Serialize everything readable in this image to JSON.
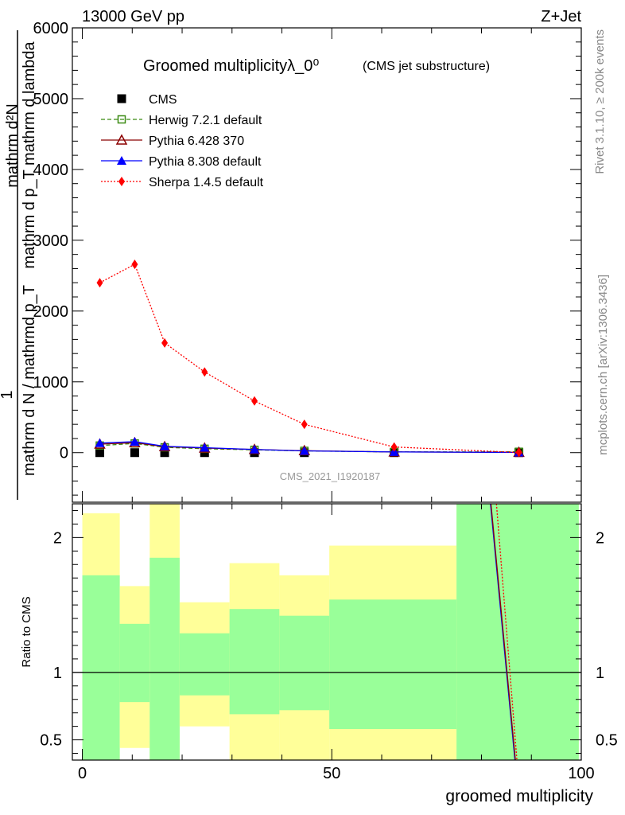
{
  "header": {
    "energy_label": "13000 GeV pp",
    "process_label": "Z+Jet"
  },
  "side_labels": {
    "rivet": "Rivet 3.1.10, ≥ 200k events",
    "mcplots": "mcplots.cern.ch [arXiv:1306.3436]"
  },
  "colors": {
    "cms": "#000000",
    "herwig": "#3a8a12",
    "pythia6": "#8b0000",
    "pythia8": "#0000ff",
    "sherpa": "#ff0000",
    "band_inner": "#99ff99",
    "band_outer": "#ffff99"
  },
  "chart_data": [
    {
      "type": "line",
      "title": "Groomed multiplicityλ_0⁰",
      "subtitle": "(CMS jet substructure)",
      "watermark": "CMS_2021_I1920187",
      "ylabel_top": "mathrm d²N",
      "ylabel_mid": "mathrm d p_T mathrm d lambda",
      "ylabel_one": "1",
      "ylabel_bottom": "mathrm d N / mathrmd p_T",
      "xlim": [
        -2,
        100
      ],
      "ylim": [
        -700,
        6000
      ],
      "yticks": [
        0,
        1000,
        2000,
        3000,
        4000,
        5000,
        6000
      ],
      "ytick_labels": [
        "0",
        "1000",
        "2000",
        "3000",
        "4000",
        "5000",
        "6000"
      ],
      "x": [
        3.5,
        10.5,
        16.5,
        24.5,
        34.5,
        44.5,
        62.5,
        87.5
      ],
      "series": [
        {
          "key": "cms",
          "name": "CMS",
          "marker": "square-filled",
          "line": "none",
          "values": [
            0,
            0,
            0,
            0,
            0,
            0,
            0,
            0
          ]
        },
        {
          "key": "herwig",
          "name": "Herwig 7.2.1 default",
          "marker": "square-open",
          "line": "dashed",
          "values": [
            100,
            130,
            75,
            55,
            40,
            25,
            10,
            12
          ]
        },
        {
          "key": "pythia6",
          "name": "Pythia 6.428 370",
          "marker": "triangle-open",
          "line": "solid",
          "values": [
            120,
            140,
            85,
            65,
            45,
            28,
            10,
            4
          ]
        },
        {
          "key": "pythia8",
          "name": "Pythia 8.308 default",
          "marker": "triangle-filled",
          "line": "solid",
          "values": [
            135,
            155,
            90,
            70,
            45,
            25,
            10,
            3
          ]
        },
        {
          "key": "sherpa",
          "name": "Sherpa 1.4.5 default",
          "marker": "diamond-filled",
          "line": "dotted",
          "values": [
            2400,
            2660,
            1550,
            1140,
            730,
            400,
            80,
            2
          ]
        }
      ]
    },
    {
      "type": "line",
      "ylabel": "Ratio to CMS",
      "xlabel": "groomed multiplicity",
      "xlim": [
        -2,
        100
      ],
      "ylim": [
        0.35,
        2.25
      ],
      "yticks": [
        0.5,
        1,
        2
      ],
      "ytick_labels": [
        "0.5",
        "1",
        "2"
      ],
      "xticks": [
        0,
        50,
        100
      ],
      "xtick_labels": [
        "0",
        "50",
        "100"
      ],
      "bins": [
        {
          "lo": 0,
          "hi": 7.5,
          "inner": [
            0.35,
            1.72
          ],
          "outer": [
            0.35,
            2.18
          ]
        },
        {
          "lo": 7.5,
          "hi": 13.5,
          "inner": [
            0.78,
            1.36
          ],
          "outer": [
            0.44,
            1.64
          ]
        },
        {
          "lo": 13.5,
          "hi": 19.5,
          "inner": [
            0.35,
            1.85
          ],
          "outer": [
            0.35,
            2.25
          ]
        },
        {
          "lo": 19.5,
          "hi": 29.5,
          "inner": [
            0.83,
            1.29
          ],
          "outer": [
            0.6,
            1.52
          ]
        },
        {
          "lo": 29.5,
          "hi": 39.5,
          "inner": [
            0.69,
            1.47
          ],
          "outer": [
            0.35,
            1.81
          ]
        },
        {
          "lo": 39.5,
          "hi": 49.5,
          "inner": [
            0.72,
            1.42
          ],
          "outer": [
            0.35,
            1.72
          ]
        },
        {
          "lo": 49.5,
          "hi": 75,
          "inner": [
            0.58,
            1.54
          ],
          "outer": [
            0.35,
            1.94
          ]
        },
        {
          "lo": 75,
          "hi": 99.5,
          "inner": [
            0.35,
            2.25
          ],
          "outer": [
            0.35,
            2.25
          ]
        }
      ],
      "ratio_lines": [
        {
          "key": "pythia8",
          "points": [
            [
              81.8,
              2.25
            ],
            [
              86.7,
              0.35
            ]
          ]
        },
        {
          "key": "pythia6",
          "points": [
            [
              81.9,
              2.25
            ],
            [
              86.8,
              0.35
            ]
          ]
        },
        {
          "key": "sherpa",
          "points": [
            [
              83.0,
              2.25
            ],
            [
              87.1,
              0.35
            ]
          ]
        }
      ],
      "reference_line": 1
    }
  ]
}
